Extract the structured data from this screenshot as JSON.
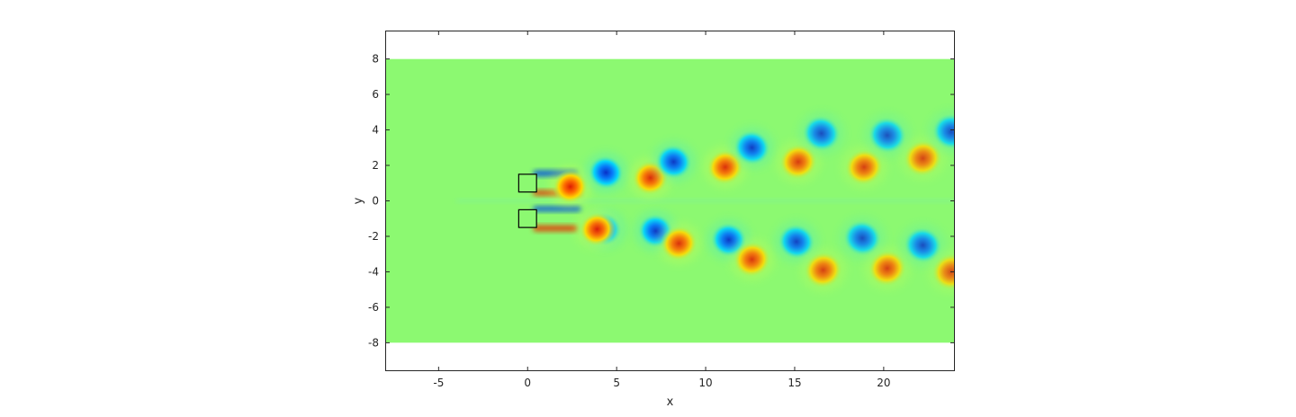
{
  "chart_data": {
    "type": "heatmap",
    "title": "",
    "xlabel": "x",
    "ylabel": "y",
    "xlim": [
      -8,
      24
    ],
    "ylim": [
      -9.6,
      9.6
    ],
    "domain": {
      "x": [
        -8,
        24
      ],
      "y": [
        -8,
        8
      ]
    },
    "xticks": [
      -5,
      0,
      5,
      10,
      15,
      20
    ],
    "yticks": [
      -8,
      -6,
      -4,
      -2,
      0,
      2,
      4,
      6,
      8
    ],
    "grid": false,
    "colorbar": false,
    "colormap": "jet",
    "background_color": "#8cf971",
    "obstacles": [
      {
        "x": [
          0,
          0.5
        ],
        "y": [
          0.5,
          1.5
        ]
      },
      {
        "x": [
          0,
          0.5
        ],
        "y": [
          -1.5,
          -0.5
        ]
      }
    ],
    "vortices": [
      {
        "sign": 1,
        "x": 2.4,
        "y": 0.8,
        "strength": 0.95
      },
      {
        "sign": -1,
        "x": 4.4,
        "y": 1.6,
        "strength": 0.85
      },
      {
        "sign": 1,
        "x": 6.9,
        "y": 1.3,
        "strength": 0.8
      },
      {
        "sign": -1,
        "x": 8.2,
        "y": 2.2,
        "strength": 0.75
      },
      {
        "sign": 1,
        "x": 11.1,
        "y": 1.9,
        "strength": 0.75
      },
      {
        "sign": -1,
        "x": 12.6,
        "y": 3.0,
        "strength": 0.7
      },
      {
        "sign": 1,
        "x": 15.2,
        "y": 2.2,
        "strength": 0.65
      },
      {
        "sign": -1,
        "x": 16.5,
        "y": 3.8,
        "strength": 0.55
      },
      {
        "sign": 1,
        "x": 18.9,
        "y": 1.9,
        "strength": 0.6
      },
      {
        "sign": -1,
        "x": 20.2,
        "y": 3.7,
        "strength": 0.5
      },
      {
        "sign": 1,
        "x": 22.2,
        "y": 2.4,
        "strength": 0.55
      },
      {
        "sign": -1,
        "x": 23.8,
        "y": 3.9,
        "strength": 0.55
      },
      {
        "sign": -1,
        "x": 4.3,
        "y": -1.6,
        "strength": 0.85
      },
      {
        "sign": 1,
        "x": 3.9,
        "y": -1.6,
        "strength": 0.9
      },
      {
        "sign": -1,
        "x": 7.2,
        "y": -1.7,
        "strength": 0.8
      },
      {
        "sign": 1,
        "x": 8.5,
        "y": -2.4,
        "strength": 0.75
      },
      {
        "sign": -1,
        "x": 11.3,
        "y": -2.2,
        "strength": 0.75
      },
      {
        "sign": 1,
        "x": 12.6,
        "y": -3.3,
        "strength": 0.7
      },
      {
        "sign": -1,
        "x": 15.1,
        "y": -2.3,
        "strength": 0.65
      },
      {
        "sign": 1,
        "x": 16.6,
        "y": -3.9,
        "strength": 0.6
      },
      {
        "sign": -1,
        "x": 18.8,
        "y": -2.1,
        "strength": 0.55
      },
      {
        "sign": 1,
        "x": 20.2,
        "y": -3.8,
        "strength": 0.6
      },
      {
        "sign": -1,
        "x": 22.2,
        "y": -2.5,
        "strength": 0.55
      },
      {
        "sign": 1,
        "x": 23.8,
        "y": -4.0,
        "strength": 0.5
      }
    ]
  }
}
